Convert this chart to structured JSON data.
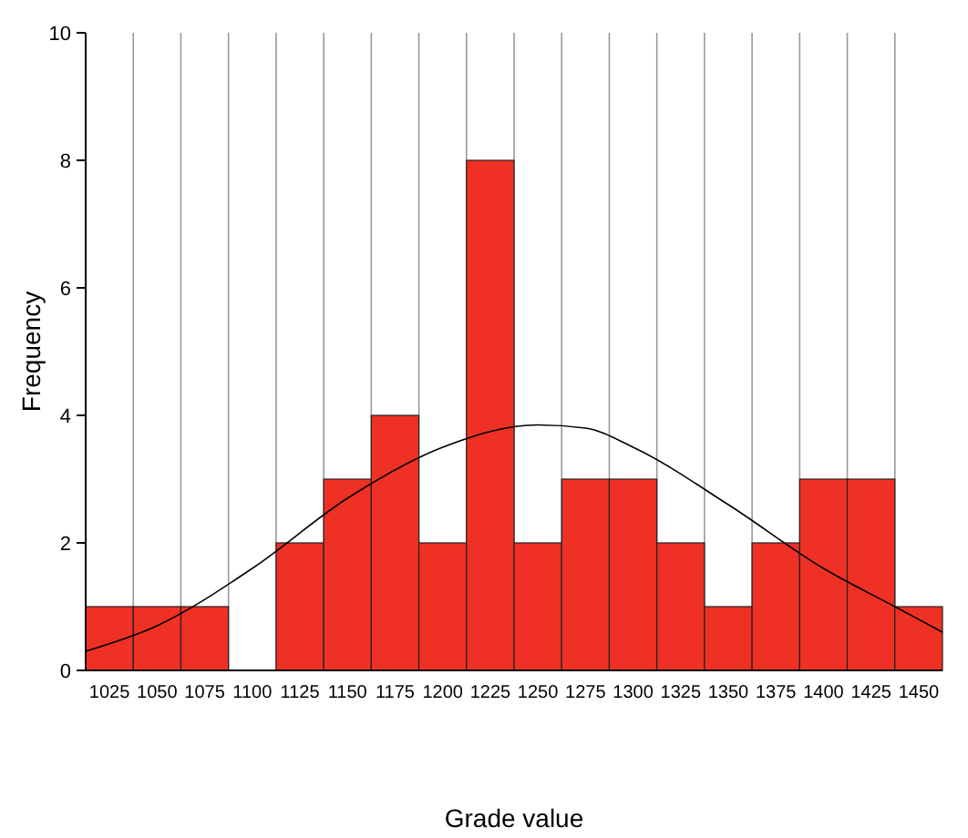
{
  "chart_data": {
    "type": "histogram",
    "xlabel": "Grade value",
    "ylabel": "Frequency",
    "bins": [
      1012.5,
      1037.5,
      1062.5,
      1087.5,
      1112.5,
      1137.5,
      1162.5,
      1187.5,
      1212.5,
      1237.5,
      1262.5,
      1287.5,
      1312.5,
      1337.5,
      1362.5,
      1387.5,
      1412.5,
      1437.5,
      1462.5
    ],
    "values": [
      1,
      1,
      1,
      0,
      2,
      3,
      4,
      2,
      8,
      2,
      3,
      3,
      2,
      1,
      2,
      3,
      3,
      1
    ],
    "color": "#ee3124",
    "xlim": [
      1012.5,
      1462.5
    ],
    "ylim": [
      0,
      10
    ],
    "xticks": [
      1025,
      {
        "value": 1037.5,
        "label": null
      },
      1050,
      {
        "value": 1062.5,
        "label": null
      },
      1075,
      {
        "value": 1087.5,
        "label": null
      },
      1100,
      {
        "value": 1112.5,
        "label": null
      },
      1125,
      {
        "value": 1137.5,
        "label": null
      },
      1150,
      {
        "value": 1162.5,
        "label": null
      },
      1175,
      {
        "value": 1187.5,
        "label": null
      },
      1200,
      {
        "value": 1212.5,
        "label": null
      },
      1225,
      {
        "value": 1237.5,
        "label": null
      },
      1250,
      {
        "value": 1262.5,
        "label": null
      },
      1275,
      {
        "value": 1287.5,
        "label": null
      },
      1300,
      {
        "value": 1312.5,
        "label": null
      },
      1325,
      {
        "value": 1337.5,
        "label": null
      },
      1350,
      {
        "value": 1362.5,
        "label": null
      },
      1375,
      {
        "value": 1387.5,
        "label": null
      },
      1400,
      {
        "value": 1412.5,
        "label": null
      },
      1425,
      {
        "value": 1437.5,
        "label": null
      },
      1450
    ],
    "yticks": [
      0,
      2,
      4,
      6,
      8,
      10
    ],
    "grid": "x",
    "series": [
      {
        "type": "line",
        "color": "#000000",
        "x": [
          1012.5,
          1050,
          1100,
          1150,
          1200,
          1250,
          1275,
          1300,
          1350,
          1400,
          1437.5,
          1462.5
        ],
        "values": [
          0.3,
          0.7,
          1.6,
          2.7,
          3.5,
          3.85,
          3.8,
          3.5,
          2.6,
          1.6,
          1.0,
          0.6
        ]
      }
    ]
  }
}
